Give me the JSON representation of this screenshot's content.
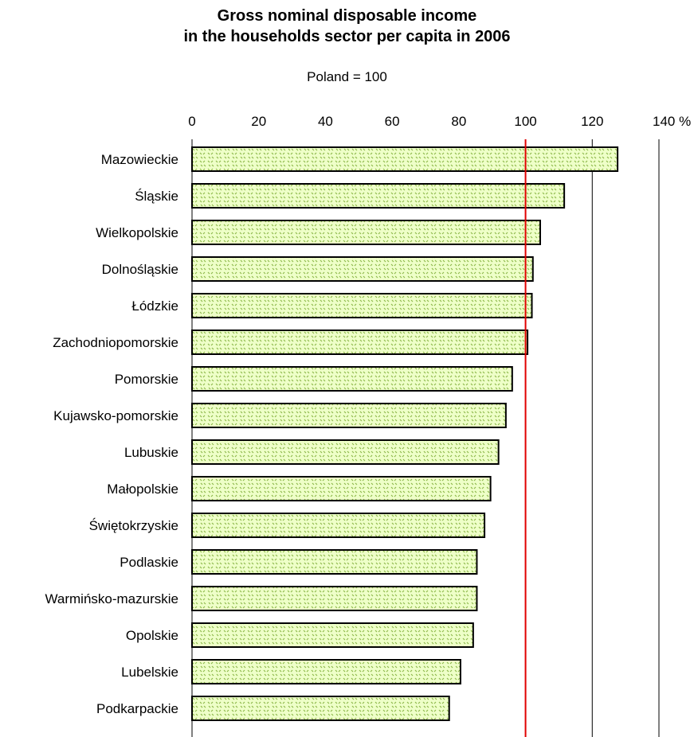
{
  "chart_data": {
    "type": "bar",
    "orientation": "horizontal",
    "title_line1": "Gross nominal disposable income",
    "title_line2": "in the households sector per capita in 2006",
    "subtitle": "Poland = 100",
    "x_ticks": [
      "0",
      "20",
      "40",
      "60",
      "80",
      "100",
      "120",
      "140 %"
    ],
    "xlim": [
      0,
      140
    ],
    "reference_line": {
      "value": 100,
      "color": "#e00000"
    },
    "gridlines": [
      120,
      140
    ],
    "bar_fill": "#eeffc8",
    "bar_pattern": "#8db84a",
    "categories": [
      "Mazowieckie",
      "Śląskie",
      "Wielkopolskie",
      "Dolnośląskie",
      "Łódzkie",
      "Zachodniopomorskie",
      "Pomorskie",
      "Kujawsko-pomorskie",
      "Lubuskie",
      "Małopolskie",
      "Świętokrzyskie",
      "Podlaskie",
      "Warmińsko-mazurskie",
      "Opolskie",
      "Lubelskie",
      "Podkarpackie"
    ],
    "values": [
      127.6,
      111.6,
      104.4,
      102.2,
      101.9,
      100.6,
      96.0,
      94.1,
      91.9,
      89.5,
      87.7,
      85.4,
      85.4,
      84.3,
      80.5,
      77.1
    ]
  }
}
